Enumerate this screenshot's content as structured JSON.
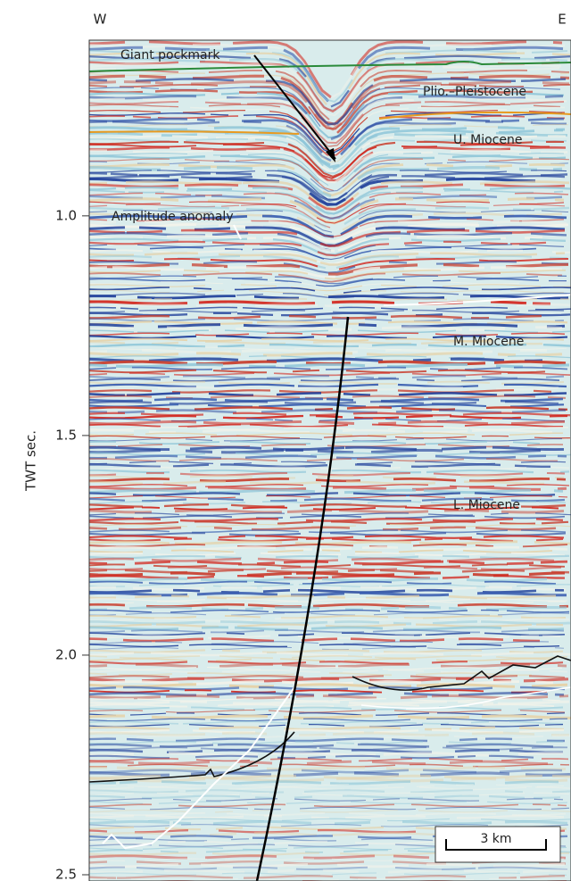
{
  "figure": {
    "compass": {
      "west": "W",
      "east": "E"
    },
    "axis": {
      "label": "TWT sec.",
      "ylim": [
        0.6,
        2.5
      ],
      "yticks": [
        {
          "value": 1,
          "label": "1.0"
        },
        1.5,
        {
          "value": 2,
          "label": "2.0"
        },
        2.5
      ]
    },
    "annotations": {
      "pockmark": "Giant pockmark",
      "plio": "Plio.–Pleistocene",
      "upper": "U. Miocene",
      "anomaly": "Amplitude anomaly",
      "middle": "M. Miocene",
      "lower": "L. Miocene"
    },
    "scale_bar": "3 km"
  }
}
